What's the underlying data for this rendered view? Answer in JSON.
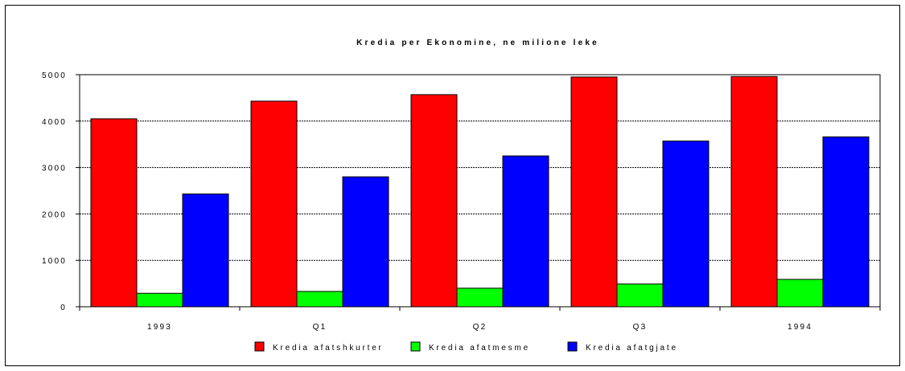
{
  "chart_data": {
    "type": "bar",
    "title": "Kredia per Ekonomine, ne milione leke",
    "xlabel": "",
    "ylabel": "",
    "categories": [
      "1993",
      "Q1",
      "Q2",
      "Q3",
      "1994"
    ],
    "series": [
      {
        "name": "Kredia afatshkurter",
        "color": "#ff0000",
        "values": [
          4050,
          4430,
          4570,
          4950,
          4960
        ]
      },
      {
        "name": "Kredia afatmesme",
        "color": "#00ff00",
        "values": [
          290,
          330,
          400,
          490,
          590
        ]
      },
      {
        "name": "Kredia afatgjate",
        "color": "#0000ff",
        "values": [
          2430,
          2800,
          3250,
          3570,
          3660
        ]
      }
    ],
    "ylim": [
      0,
      5000
    ],
    "yticks": [
      0,
      1000,
      2000,
      3000,
      4000,
      5000
    ],
    "grid": true,
    "legend_position": "bottom"
  }
}
